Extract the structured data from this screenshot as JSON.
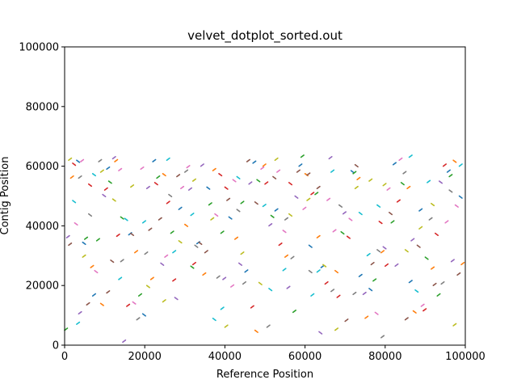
{
  "chart_data": {
    "type": "scatter",
    "title": "velvet_dotplot_sorted.out",
    "xlabel": "Reference Position",
    "ylabel": "Contig Position",
    "xlim": [
      0,
      100000
    ],
    "ylim": [
      0,
      100000
    ],
    "xticks": [
      0,
      20000,
      40000,
      60000,
      80000,
      100000
    ],
    "yticks": [
      0,
      20000,
      40000,
      60000,
      80000,
      100000
    ],
    "xtick_labels": [
      "0",
      "20000",
      "40000",
      "60000",
      "80000",
      "100000"
    ],
    "ytick_labels": [
      "0",
      "20000",
      "40000",
      "60000",
      "80000",
      "100000"
    ],
    "grid": false,
    "series": [
      {
        "color": "#1f77b4",
        "values": [
          [
            3000,
            62000
          ],
          [
            10500,
            59000
          ],
          [
            22000,
            61500
          ],
          [
            35500,
            53000
          ],
          [
            47000,
            61000
          ],
          [
            58500,
            60000
          ],
          [
            71500,
            58500
          ],
          [
            82000,
            60500
          ],
          [
            95500,
            58000
          ],
          [
            4500,
            34500
          ],
          [
            16000,
            37000
          ],
          [
            28500,
            45500
          ],
          [
            41000,
            43000
          ],
          [
            52500,
            45000
          ],
          [
            64000,
            26000
          ],
          [
            76000,
            19000
          ],
          [
            88500,
            45000
          ],
          [
            7000,
            16500
          ],
          [
            19500,
            10500
          ],
          [
            33000,
            34000
          ],
          [
            45000,
            24500
          ],
          [
            61000,
            33500
          ],
          [
            73500,
            23000
          ],
          [
            86000,
            21000
          ],
          [
            98500,
            50000
          ]
        ]
      },
      {
        "color": "#ff7f0e",
        "values": [
          [
            1500,
            56000
          ],
          [
            12500,
            61500
          ],
          [
            24500,
            57500
          ],
          [
            37000,
            58500
          ],
          [
            49500,
            60000
          ],
          [
            60000,
            57500
          ],
          [
            73000,
            55500
          ],
          [
            85500,
            52500
          ],
          [
            97000,
            62000
          ],
          [
            6500,
            26000
          ],
          [
            17500,
            31000
          ],
          [
            30000,
            40500
          ],
          [
            42500,
            35500
          ],
          [
            55000,
            29500
          ],
          [
            67500,
            25000
          ],
          [
            79000,
            31000
          ],
          [
            91500,
            25500
          ],
          [
            9000,
            14000
          ],
          [
            21500,
            22000
          ],
          [
            34500,
            23500
          ],
          [
            47500,
            5000
          ],
          [
            63000,
            36000
          ],
          [
            75000,
            9000
          ],
          [
            87000,
            11500
          ],
          [
            99000,
            27000
          ]
        ]
      },
      {
        "color": "#2ca02c",
        "values": [
          [
            0,
            5000
          ],
          [
            11000,
            55000
          ],
          [
            23000,
            56000
          ],
          [
            36000,
            47000
          ],
          [
            48000,
            55500
          ],
          [
            59000,
            63000
          ],
          [
            72000,
            57500
          ],
          [
            84000,
            54500
          ],
          [
            96000,
            56500
          ],
          [
            5000,
            35500
          ],
          [
            14000,
            43000
          ],
          [
            26500,
            37500
          ],
          [
            39000,
            37500
          ],
          [
            51500,
            43500
          ],
          [
            62500,
            50500
          ],
          [
            77000,
            21500
          ],
          [
            90000,
            29500
          ],
          [
            8000,
            35000
          ],
          [
            18500,
            16500
          ],
          [
            31500,
            26500
          ],
          [
            44000,
            47500
          ],
          [
            57000,
            11000
          ],
          [
            69000,
            38000
          ],
          [
            81500,
            41000
          ],
          [
            93000,
            16500
          ]
        ]
      },
      {
        "color": "#d62728",
        "values": [
          [
            2000,
            61000
          ],
          [
            13000,
            36500
          ],
          [
            25500,
            47500
          ],
          [
            38500,
            57500
          ],
          [
            50000,
            54000
          ],
          [
            61500,
            50500
          ],
          [
            70500,
            36500
          ],
          [
            83000,
            48000
          ],
          [
            94500,
            60000
          ],
          [
            6000,
            54000
          ],
          [
            15500,
            13000
          ],
          [
            27000,
            21500
          ],
          [
            40000,
            53000
          ],
          [
            53500,
            33500
          ],
          [
            65000,
            20500
          ],
          [
            78500,
            41500
          ],
          [
            89500,
            11500
          ],
          [
            10000,
            52000
          ],
          [
            22500,
            54500
          ],
          [
            32000,
            27000
          ],
          [
            46500,
            12500
          ],
          [
            56000,
            54500
          ],
          [
            68000,
            16000
          ],
          [
            80000,
            26500
          ],
          [
            92500,
            37500
          ]
        ]
      },
      {
        "color": "#9467bd",
        "values": [
          [
            500,
            36000
          ],
          [
            12000,
            62500
          ],
          [
            24000,
            27500
          ],
          [
            34000,
            60000
          ],
          [
            46000,
            54000
          ],
          [
            57500,
            50000
          ],
          [
            69500,
            44000
          ],
          [
            82500,
            26500
          ],
          [
            93500,
            55000
          ],
          [
            3500,
            10500
          ],
          [
            14500,
            1000
          ],
          [
            27500,
            16000
          ],
          [
            39500,
            22000
          ],
          [
            51000,
            40000
          ],
          [
            63500,
            4500
          ],
          [
            74500,
            17000
          ],
          [
            86500,
            35000
          ],
          [
            9500,
            50500
          ],
          [
            20500,
            52500
          ],
          [
            31000,
            52000
          ],
          [
            43500,
            27500
          ],
          [
            55500,
            19000
          ],
          [
            66000,
            62500
          ],
          [
            79500,
            33000
          ],
          [
            96500,
            28000
          ]
        ]
      },
      {
        "color": "#8c564b",
        "values": [
          [
            1000,
            33500
          ],
          [
            11500,
            28500
          ],
          [
            23500,
            42000
          ],
          [
            35000,
            31000
          ],
          [
            47500,
            48000
          ],
          [
            58000,
            58000
          ],
          [
            70000,
            8000
          ],
          [
            81000,
            44500
          ],
          [
            92000,
            20000
          ],
          [
            5500,
            13500
          ],
          [
            16500,
            37500
          ],
          [
            28000,
            56500
          ],
          [
            40500,
            48500
          ],
          [
            52000,
            56500
          ],
          [
            63000,
            52500
          ],
          [
            76500,
            27000
          ],
          [
            88000,
            33500
          ],
          [
            10500,
            17500
          ],
          [
            21000,
            38500
          ],
          [
            33500,
            34500
          ],
          [
            45500,
            61500
          ],
          [
            60500,
            57000
          ],
          [
            72500,
            60500
          ],
          [
            85000,
            8500
          ],
          [
            98000,
            23500
          ]
        ]
      },
      {
        "color": "#e377c2",
        "values": [
          [
            2500,
            41000
          ],
          [
            13500,
            58500
          ],
          [
            25000,
            29500
          ],
          [
            37500,
            44000
          ],
          [
            49000,
            59000
          ],
          [
            59500,
            45500
          ],
          [
            71000,
            42500
          ],
          [
            83500,
            62000
          ],
          [
            95000,
            41000
          ],
          [
            7500,
            25000
          ],
          [
            19000,
            59000
          ],
          [
            30500,
            59500
          ],
          [
            42000,
            55500
          ],
          [
            53000,
            58000
          ],
          [
            65500,
            48500
          ],
          [
            77500,
            11000
          ],
          [
            89000,
            13000
          ],
          [
            4000,
            61500
          ],
          [
            17000,
            14500
          ],
          [
            29000,
            52500
          ],
          [
            41500,
            19500
          ],
          [
            54500,
            38500
          ],
          [
            67000,
            38000
          ],
          [
            80500,
            52000
          ],
          [
            97500,
            47000
          ]
        ]
      },
      {
        "color": "#7f7f7f",
        "values": [
          [
            3500,
            56000
          ],
          [
            14000,
            28000
          ],
          [
            26000,
            50500
          ],
          [
            38000,
            22500
          ],
          [
            50500,
            6000
          ],
          [
            61000,
            25000
          ],
          [
            72000,
            17000
          ],
          [
            84500,
            57500
          ],
          [
            96000,
            52000
          ],
          [
            8500,
            61500
          ],
          [
            20000,
            30500
          ],
          [
            32500,
            33500
          ],
          [
            44500,
            20500
          ],
          [
            56500,
            29000
          ],
          [
            68500,
            47000
          ],
          [
            79000,
            2500
          ],
          [
            91000,
            42000
          ],
          [
            6000,
            44000
          ],
          [
            18000,
            8500
          ],
          [
            30000,
            58000
          ],
          [
            43000,
            45500
          ],
          [
            55000,
            42000
          ],
          [
            66500,
            18000
          ],
          [
            78000,
            32000
          ],
          [
            94000,
            20500
          ]
        ]
      },
      {
        "color": "#bcbd22",
        "values": [
          [
            1000,
            62000
          ],
          [
            12000,
            49000
          ],
          [
            24500,
            14500
          ],
          [
            36500,
            42000
          ],
          [
            48500,
            21000
          ],
          [
            60500,
            48500
          ],
          [
            72500,
            52500
          ],
          [
            85000,
            32000
          ],
          [
            97000,
            6500
          ],
          [
            9000,
            58000
          ],
          [
            20500,
            20000
          ],
          [
            32000,
            55000
          ],
          [
            44000,
            30500
          ],
          [
            56000,
            44000
          ],
          [
            67500,
            5000
          ],
          [
            79500,
            53500
          ],
          [
            91500,
            47500
          ],
          [
            4500,
            29500
          ],
          [
            16500,
            53000
          ],
          [
            28500,
            35000
          ],
          [
            40000,
            6000
          ],
          [
            52500,
            62000
          ],
          [
            64500,
            27000
          ],
          [
            76000,
            55000
          ],
          [
            88500,
            39000
          ]
        ]
      },
      {
        "color": "#17becf",
        "values": [
          [
            2000,
            48500
          ],
          [
            13500,
            22000
          ],
          [
            25500,
            62000
          ],
          [
            37000,
            9000
          ],
          [
            49500,
            46500
          ],
          [
            61500,
            16500
          ],
          [
            73500,
            44500
          ],
          [
            86000,
            63000
          ],
          [
            98500,
            60000
          ],
          [
            7000,
            57500
          ],
          [
            19500,
            41000
          ],
          [
            31500,
            43500
          ],
          [
            43000,
            56500
          ],
          [
            54500,
            25000
          ],
          [
            66500,
            58000
          ],
          [
            78000,
            47000
          ],
          [
            90500,
            54500
          ],
          [
            3000,
            7000
          ],
          [
            15000,
            42500
          ],
          [
            27000,
            31000
          ],
          [
            39000,
            12000
          ],
          [
            51000,
            19000
          ],
          [
            63000,
            24500
          ],
          [
            75500,
            30000
          ],
          [
            87500,
            18500
          ]
        ]
      }
    ]
  }
}
